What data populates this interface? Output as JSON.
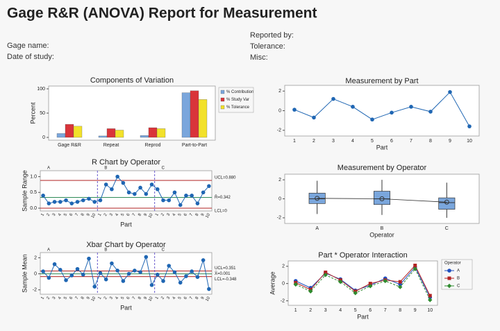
{
  "header": {
    "title": "Gage R&R (ANOVA) Report for Measurement",
    "left_fields": [
      "Gage name:",
      "Date of study:"
    ],
    "right_fields": [
      "Reported by:",
      "Tolerance:",
      "Misc:"
    ]
  },
  "chart_data": [
    {
      "type": "bar",
      "title": "Components of Variation",
      "ylabel": "Percent",
      "categories": [
        "Gage R&R",
        "Repeat",
        "Reprod",
        "Part-to-Part"
      ],
      "series": [
        {
          "name": "% Contribution",
          "color": "#7aa6dc",
          "values": [
            8,
            3,
            4,
            92
          ]
        },
        {
          "name": "% Study Var",
          "color": "#d9343a",
          "values": [
            27,
            18,
            20,
            96
          ]
        },
        {
          "name": "% Tolerance",
          "color": "#f2e12a",
          "values": [
            23,
            15,
            18,
            78
          ]
        }
      ],
      "ylim": [
        0,
        100
      ],
      "yticks": [
        0,
        50,
        100
      ]
    },
    {
      "type": "line",
      "title": "R Chart by Operator",
      "ylabel": "Sample Range",
      "xlabel": "Part",
      "groups": [
        "A",
        "B",
        "C"
      ],
      "categories": [
        "1",
        "2",
        "3",
        "4",
        "5",
        "6",
        "7",
        "8",
        "9",
        "10",
        "1",
        "2",
        "3",
        "4",
        "5",
        "6",
        "7",
        "8",
        "9",
        "10",
        "1",
        "2",
        "3",
        "4",
        "5",
        "6",
        "7",
        "8",
        "9",
        "10"
      ],
      "values": [
        0.4,
        0.15,
        0.2,
        0.2,
        0.25,
        0.15,
        0.2,
        0.25,
        0.3,
        0.2,
        0.25,
        0.75,
        0.6,
        1.0,
        0.8,
        0.5,
        0.45,
        0.65,
        0.45,
        0.75,
        0.6,
        0.25,
        0.25,
        0.5,
        0.1,
        0.4,
        0.4,
        0.15,
        0.5,
        0.7
      ],
      "color": "#1f66b3",
      "control_lines": [
        {
          "label": "UCL=0.880",
          "value": 0.88,
          "color": "#b22222"
        },
        {
          "label": "R̄=0.342",
          "value": 0.342,
          "color": "#2e8b57"
        },
        {
          "label": "LCL=0",
          "value": 0,
          "color": "#b22222"
        }
      ],
      "ylim": [
        0,
        1.1
      ],
      "yticks": [
        {
          "value": 0,
          "label": "0.0"
        },
        {
          "value": 0.5,
          "label": "0.5"
        },
        {
          "value": 1,
          "label": "1.0"
        }
      ]
    },
    {
      "type": "line",
      "title": "Xbar Chart by Operator",
      "ylabel": "Sample Mean",
      "xlabel": "Part",
      "groups": [
        "A",
        "B",
        "C"
      ],
      "categories": [
        "1",
        "2",
        "3",
        "4",
        "5",
        "6",
        "7",
        "8",
        "9",
        "10",
        "1",
        "2",
        "3",
        "4",
        "5",
        "6",
        "7",
        "8",
        "9",
        "10",
        "1",
        "2",
        "3",
        "4",
        "5",
        "6",
        "7",
        "8",
        "9",
        "10"
      ],
      "values": [
        0.3,
        -0.5,
        1.2,
        0.5,
        -0.8,
        -0.2,
        0.6,
        -0.1,
        1.9,
        -1.6,
        0.1,
        -0.7,
        1.3,
        0.4,
        -0.9,
        0.0,
        0.4,
        0.2,
        2.1,
        -1.4,
        -0.1,
        -0.9,
        1.0,
        0.2,
        -1.1,
        -0.3,
        0.3,
        -0.4,
        1.7,
        -1.9
      ],
      "color": "#1f66b3",
      "control_lines": [
        {
          "label": "UCL=0.351",
          "value": 0.351,
          "color": "#b22222"
        },
        {
          "label": "X̄=0.001",
          "value": 0.001,
          "color": "#2e8b57"
        },
        {
          "label": "LCL=-0.348",
          "value": -0.348,
          "color": "#b22222"
        }
      ],
      "ylim": [
        -2.2,
        2.3
      ],
      "yticks": [
        -2,
        0,
        2
      ]
    },
    {
      "type": "line",
      "title": "Measurement by Part",
      "xlabel": "Part",
      "categories": [
        "1",
        "2",
        "3",
        "4",
        "5",
        "6",
        "7",
        "8",
        "9",
        "10"
      ],
      "values": [
        0.1,
        -0.7,
        1.2,
        0.4,
        -0.9,
        -0.2,
        0.4,
        -0.1,
        1.9,
        -1.6
      ],
      "color": "#1f66b3",
      "ylim": [
        -2.3,
        2.3
      ],
      "yticks": [
        -2,
        0,
        2
      ]
    },
    {
      "type": "box",
      "title": "Measurement by Operator",
      "xlabel": "Operator",
      "categories": [
        "A",
        "B",
        "C"
      ],
      "boxes": [
        {
          "whisker_low": -1.6,
          "q1": -0.5,
          "median": 0.0,
          "q3": 0.6,
          "whisker_high": 1.9
        },
        {
          "whisker_low": -1.7,
          "q1": -0.6,
          "median": 0.0,
          "q3": 0.8,
          "whisker_high": 2.0
        },
        {
          "whisker_low": -2.0,
          "q1": -1.1,
          "median": -0.4,
          "q3": 0.1,
          "whisker_high": 1.7
        }
      ],
      "means": [
        0.05,
        0.0,
        -0.35
      ],
      "color": "#7aa6dc",
      "ylim": [
        -2.3,
        2.3
      ],
      "yticks": [
        -2,
        0,
        2
      ]
    },
    {
      "type": "line",
      "title": "Part * Operator Interaction",
      "ylabel": "Average",
      "xlabel": "Part",
      "legend_title": "Operator",
      "categories": [
        "1",
        "2",
        "3",
        "4",
        "5",
        "6",
        "7",
        "8",
        "9",
        "10"
      ],
      "series": [
        {
          "name": "A",
          "color": "#1f4fbf",
          "marker": "circle",
          "values": [
            0.3,
            -0.5,
            1.2,
            0.5,
            -0.8,
            -0.2,
            0.6,
            -0.1,
            1.9,
            -1.6
          ]
        },
        {
          "name": "B",
          "color": "#b22222",
          "marker": "square",
          "values": [
            0.1,
            -0.7,
            1.3,
            0.4,
            -0.9,
            0.0,
            0.4,
            0.2,
            2.1,
            -1.4
          ]
        },
        {
          "name": "C",
          "color": "#2e8b2e",
          "marker": "diamond",
          "values": [
            -0.1,
            -0.9,
            1.0,
            0.2,
            -1.1,
            -0.3,
            0.3,
            -0.4,
            1.7,
            -1.9
          ]
        }
      ],
      "ylim": [
        -2.2,
        2.3
      ],
      "yticks": [
        -2,
        0,
        2
      ]
    }
  ]
}
